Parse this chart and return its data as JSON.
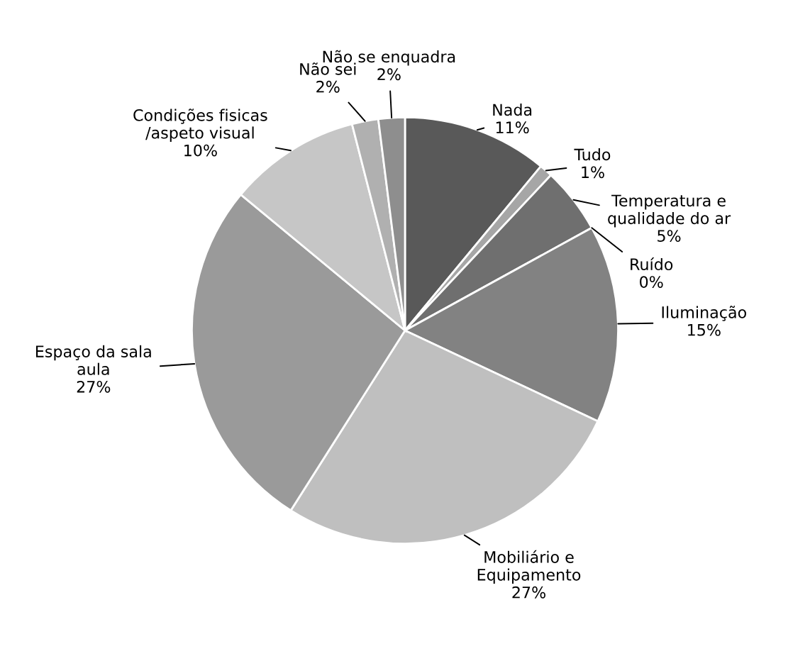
{
  "chart_data": {
    "type": "pie",
    "categories": [
      "Nada",
      "Tudo",
      "Temperatura e\nqualidade do ar",
      "Ruído",
      "Iluminação",
      "Mobiliário e\nEquipamento",
      "Espaço da sala\naula",
      "Condições fisicas\n/aspeto visual",
      "Não sei",
      "Não se enquadra"
    ],
    "values": [
      11,
      1,
      5,
      0,
      15,
      27,
      27,
      10,
      2,
      2
    ],
    "value_labels": [
      "11%",
      "1%",
      "5%",
      "0%",
      "15%",
      "27%",
      "27%",
      "10%",
      "2%",
      "2%"
    ],
    "colors": [
      "#595959",
      "#a6a6a6",
      "#6f6f6f",
      "#7a7a7a",
      "#828282",
      "#bfbfbf",
      "#9a9a9a",
      "#c6c6c6",
      "#b0b0b0",
      "#8e8e8e"
    ],
    "legend": false
  }
}
